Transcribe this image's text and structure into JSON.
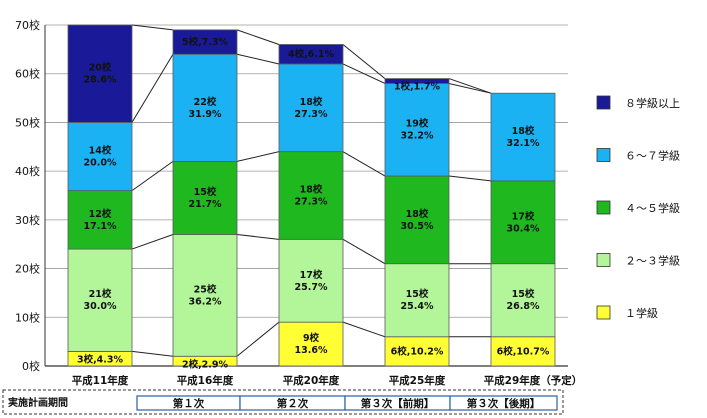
{
  "chart_data": {
    "type": "bar",
    "stacked": true,
    "y_unit": "校",
    "ylim": [
      0,
      70
    ],
    "y_ticks": [
      "0校",
      "10校",
      "20校",
      "30校",
      "40校",
      "50校",
      "60校",
      "70校"
    ],
    "categories": [
      "平成11年度",
      "平成16年度",
      "平成20年度",
      "平成25年度",
      "平成29年度（予定）"
    ],
    "series": [
      {
        "name": "１学級",
        "color": "#ffff33",
        "values": [
          3,
          2,
          9,
          6,
          6
        ],
        "labels": [
          [
            "3校,4.3%"
          ],
          [
            "2校,2.9%"
          ],
          [
            "9校",
            "13.6%"
          ],
          [
            "6校,10.2%"
          ],
          [
            "6校,10.7%"
          ]
        ]
      },
      {
        "name": "２～３学級",
        "color": "#b3f599",
        "values": [
          21,
          25,
          17,
          15,
          15
        ],
        "labels": [
          [
            "21校",
            "30.0%"
          ],
          [
            "25校",
            "36.2%"
          ],
          [
            "17校",
            "25.7%"
          ],
          [
            "15校",
            "25.4%"
          ],
          [
            "15校",
            "26.8%"
          ]
        ]
      },
      {
        "name": "４～５学級",
        "color": "#1fb81f",
        "values": [
          12,
          15,
          18,
          18,
          17
        ],
        "labels": [
          [
            "12校",
            "17.1%"
          ],
          [
            "15校",
            "21.7%"
          ],
          [
            "18校",
            "27.3%"
          ],
          [
            "18校",
            "30.5%"
          ],
          [
            "17校",
            "30.4%"
          ]
        ]
      },
      {
        "name": "６～７学級",
        "color": "#1ab2f2",
        "values": [
          14,
          22,
          18,
          19,
          18
        ],
        "labels": [
          [
            "14校",
            "20.0%"
          ],
          [
            "22校",
            "31.9%"
          ],
          [
            "18校",
            "27.3%"
          ],
          [
            "19校",
            "32.2%"
          ],
          [
            "18校",
            "32.1%"
          ]
        ]
      },
      {
        "name": "８学級以上",
        "color": "#1a1a99",
        "values": [
          20,
          5,
          4,
          1,
          0
        ],
        "labels": [
          [
            "20校",
            "28.6%"
          ],
          [
            "5校,7.3%"
          ],
          [
            "4校,6.1%"
          ],
          [
            "1校,1.7%"
          ],
          []
        ]
      }
    ],
    "grid": true,
    "legend_position": "right",
    "legend_order": [
      "８学級以上",
      "６～７学級",
      "４～５学級",
      "２～３学級",
      "１学級"
    ]
  },
  "plan_periods": {
    "title": "実施計画期間",
    "cells": [
      "第１次",
      "第２次",
      "第３次【前期】",
      "第３次【後期】"
    ]
  }
}
